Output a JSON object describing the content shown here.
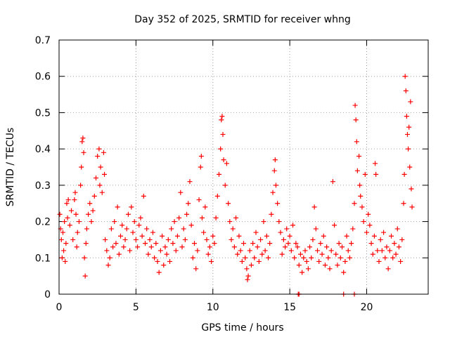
{
  "chart_data": {
    "type": "scatter",
    "title": "Day 352 of 2025, SRMTID for receiver whng",
    "xlabel": "GPS time / hours",
    "ylabel": "SRMTID / TECUs",
    "xlim": [
      0,
      24
    ],
    "ylim": [
      0,
      0.7
    ],
    "x_ticks": [
      0,
      5,
      10,
      15,
      20
    ],
    "x_tick_labels": [
      "0",
      "5",
      "10",
      "15",
      "20"
    ],
    "y_ticks": [
      0,
      0.1,
      0.2,
      0.3,
      0.4,
      0.5,
      0.6,
      0.7
    ],
    "y_tick_labels": [
      "0",
      "0.1",
      "0.2",
      "0.3",
      "0.4",
      "0.5",
      "0.6",
      "0.7"
    ],
    "grid": true,
    "marker": "+",
    "color": "#ff0000",
    "series": [
      {
        "name": "SRMTID",
        "points": [
          [
            0.05,
            0.22
          ],
          [
            0.1,
            0.18
          ],
          [
            0.15,
            0.15
          ],
          [
            0.2,
            0.1
          ],
          [
            0.25,
            0.17
          ],
          [
            0.3,
            0.12
          ],
          [
            0.35,
            0.2
          ],
          [
            0.4,
            0.09
          ],
          [
            0.45,
            0.14
          ],
          [
            0.5,
            0.25
          ],
          [
            0.55,
            0.21
          ],
          [
            0.6,
            0.26
          ],
          [
            0.7,
            0.19
          ],
          [
            0.8,
            0.23
          ],
          [
            0.9,
            0.15
          ],
          [
            1.0,
            0.26
          ],
          [
            1.05,
            0.28
          ],
          [
            1.1,
            0.22
          ],
          [
            1.15,
            0.13
          ],
          [
            1.2,
            0.17
          ],
          [
            1.3,
            0.2
          ],
          [
            1.4,
            0.3
          ],
          [
            1.45,
            0.35
          ],
          [
            1.5,
            0.42
          ],
          [
            1.55,
            0.43
          ],
          [
            1.6,
            0.39
          ],
          [
            1.65,
            0.1
          ],
          [
            1.7,
            0.05
          ],
          [
            1.75,
            0.14
          ],
          [
            1.8,
            0.18
          ],
          [
            1.9,
            0.22
          ],
          [
            2.0,
            0.25
          ],
          [
            2.1,
            0.2
          ],
          [
            2.2,
            0.23
          ],
          [
            2.3,
            0.27
          ],
          [
            2.4,
            0.32
          ],
          [
            2.5,
            0.38
          ],
          [
            2.6,
            0.4
          ],
          [
            2.65,
            0.3
          ],
          [
            2.7,
            0.35
          ],
          [
            2.8,
            0.28
          ],
          [
            2.9,
            0.39
          ],
          [
            2.95,
            0.33
          ],
          [
            3.0,
            0.15
          ],
          [
            3.1,
            0.12
          ],
          [
            3.2,
            0.08
          ],
          [
            3.3,
            0.1
          ],
          [
            3.4,
            0.18
          ],
          [
            3.5,
            0.13
          ],
          [
            3.6,
            0.2
          ],
          [
            3.7,
            0.14
          ],
          [
            3.8,
            0.24
          ],
          [
            3.9,
            0.11
          ],
          [
            4.0,
            0.16
          ],
          [
            4.1,
            0.19
          ],
          [
            4.2,
            0.13
          ],
          [
            4.3,
            0.15
          ],
          [
            4.4,
            0.18
          ],
          [
            4.5,
            0.22
          ],
          [
            4.6,
            0.12
          ],
          [
            4.7,
            0.24
          ],
          [
            4.8,
            0.17
          ],
          [
            4.9,
            0.2
          ],
          [
            5.0,
            0.15
          ],
          [
            5.1,
            0.13
          ],
          [
            5.2,
            0.19
          ],
          [
            5.3,
            0.21
          ],
          [
            5.4,
            0.16
          ],
          [
            5.5,
            0.27
          ],
          [
            5.6,
            0.14
          ],
          [
            5.7,
            0.18
          ],
          [
            5.8,
            0.11
          ],
          [
            5.9,
            0.15
          ],
          [
            6.0,
            0.13
          ],
          [
            6.1,
            0.17
          ],
          [
            6.2,
            0.1
          ],
          [
            6.3,
            0.14
          ],
          [
            6.4,
            0.09
          ],
          [
            6.5,
            0.06
          ],
          [
            6.6,
            0.12
          ],
          [
            6.7,
            0.16
          ],
          [
            6.8,
            0.08
          ],
          [
            6.9,
            0.13
          ],
          [
            7.0,
            0.11
          ],
          [
            7.1,
            0.15
          ],
          [
            7.2,
            0.09
          ],
          [
            7.3,
            0.18
          ],
          [
            7.4,
            0.14
          ],
          [
            7.5,
            0.2
          ],
          [
            7.6,
            0.12
          ],
          [
            7.7,
            0.16
          ],
          [
            7.8,
            0.21
          ],
          [
            7.9,
            0.28
          ],
          [
            8.0,
            0.13
          ],
          [
            8.1,
            0.18
          ],
          [
            8.2,
            0.15
          ],
          [
            8.3,
            0.22
          ],
          [
            8.4,
            0.25
          ],
          [
            8.5,
            0.31
          ],
          [
            8.6,
            0.19
          ],
          [
            8.7,
            0.1
          ],
          [
            8.8,
            0.14
          ],
          [
            8.9,
            0.07
          ],
          [
            9.0,
            0.12
          ],
          [
            9.1,
            0.26
          ],
          [
            9.2,
            0.35
          ],
          [
            9.25,
            0.38
          ],
          [
            9.3,
            0.21
          ],
          [
            9.4,
            0.17
          ],
          [
            9.5,
            0.24
          ],
          [
            9.6,
            0.15
          ],
          [
            9.7,
            0.11
          ],
          [
            9.8,
            0.13
          ],
          [
            9.9,
            0.09
          ],
          [
            10.0,
            0.16
          ],
          [
            10.1,
            0.14
          ],
          [
            10.2,
            0.21
          ],
          [
            10.3,
            0.27
          ],
          [
            10.4,
            0.33
          ],
          [
            10.5,
            0.4
          ],
          [
            10.55,
            0.48
          ],
          [
            10.6,
            0.49
          ],
          [
            10.65,
            0.44
          ],
          [
            10.7,
            0.37
          ],
          [
            10.8,
            0.3
          ],
          [
            10.9,
            0.36
          ],
          [
            11.0,
            0.25
          ],
          [
            11.1,
            0.2
          ],
          [
            11.2,
            0.15
          ],
          [
            11.3,
            0.18
          ],
          [
            11.4,
            0.13
          ],
          [
            11.5,
            0.21
          ],
          [
            11.6,
            0.11
          ],
          [
            11.7,
            0.16
          ],
          [
            11.8,
            0.12
          ],
          [
            11.9,
            0.09
          ],
          [
            12.0,
            0.14
          ],
          [
            12.1,
            0.1
          ],
          [
            12.2,
            0.07
          ],
          [
            12.25,
            0.04
          ],
          [
            12.3,
            0.05
          ],
          [
            12.4,
            0.12
          ],
          [
            12.5,
            0.08
          ],
          [
            12.6,
            0.14
          ],
          [
            12.7,
            0.1
          ],
          [
            12.8,
            0.17
          ],
          [
            12.9,
            0.13
          ],
          [
            13.0,
            0.09
          ],
          [
            13.1,
            0.15
          ],
          [
            13.2,
            0.11
          ],
          [
            13.3,
            0.2
          ],
          [
            13.4,
            0.12
          ],
          [
            13.5,
            0.16
          ],
          [
            13.6,
            0.1
          ],
          [
            13.7,
            0.14
          ],
          [
            13.8,
            0.22
          ],
          [
            13.9,
            0.28
          ],
          [
            14.0,
            0.34
          ],
          [
            14.05,
            0.37
          ],
          [
            14.1,
            0.3
          ],
          [
            14.2,
            0.25
          ],
          [
            14.3,
            0.2
          ],
          [
            14.4,
            0.17
          ],
          [
            14.5,
            0.11
          ],
          [
            14.6,
            0.15
          ],
          [
            14.7,
            0.13
          ],
          [
            14.8,
            0.18
          ],
          [
            14.9,
            0.14
          ],
          [
            15.0,
            0.16
          ],
          [
            15.1,
            0.12
          ],
          [
            15.2,
            0.19
          ],
          [
            15.3,
            0.1
          ],
          [
            15.4,
            0.14
          ],
          [
            15.5,
            0.13
          ],
          [
            15.6,
            0.08
          ],
          [
            15.7,
            0.11
          ],
          [
            15.8,
            0.06
          ],
          [
            15.9,
            0.1
          ],
          [
            16.0,
            0.12
          ],
          [
            16.1,
            0.09
          ],
          [
            16.2,
            0.07
          ],
          [
            16.3,
            0.13
          ],
          [
            16.4,
            0.1
          ],
          [
            16.5,
            0.15
          ],
          [
            16.6,
            0.24
          ],
          [
            16.7,
            0.18
          ],
          [
            16.8,
            0.12
          ],
          [
            16.9,
            0.09
          ],
          [
            17.0,
            0.14
          ],
          [
            17.1,
            0.11
          ],
          [
            17.2,
            0.16
          ],
          [
            17.3,
            0.08
          ],
          [
            17.4,
            0.13
          ],
          [
            17.5,
            0.1
          ],
          [
            17.6,
            0.07
          ],
          [
            17.7,
            0.12
          ],
          [
            17.8,
            0.31
          ],
          [
            17.9,
            0.19
          ],
          [
            18.0,
            0.11
          ],
          [
            18.1,
            0.08
          ],
          [
            18.2,
            0.14
          ],
          [
            18.3,
            0.1
          ],
          [
            18.4,
            0.13
          ],
          [
            18.5,
            0.06
          ],
          [
            18.6,
            0.09
          ],
          [
            18.7,
            0.16
          ],
          [
            18.8,
            0.12
          ],
          [
            18.9,
            0.1
          ],
          [
            19.0,
            0.14
          ],
          [
            19.1,
            0.18
          ],
          [
            19.2,
            0.25
          ],
          [
            19.25,
            0.52
          ],
          [
            19.3,
            0.48
          ],
          [
            19.35,
            0.42
          ],
          [
            19.4,
            0.34
          ],
          [
            19.5,
            0.38
          ],
          [
            19.55,
            0.3
          ],
          [
            19.6,
            0.27
          ],
          [
            19.7,
            0.24
          ],
          [
            19.8,
            0.2
          ],
          [
            19.9,
            0.33
          ],
          [
            20.0,
            0.17
          ],
          [
            20.1,
            0.22
          ],
          [
            20.2,
            0.19
          ],
          [
            20.3,
            0.14
          ],
          [
            20.4,
            0.11
          ],
          [
            20.5,
            0.16
          ],
          [
            20.55,
            0.36
          ],
          [
            20.6,
            0.33
          ],
          [
            20.7,
            0.12
          ],
          [
            20.8,
            0.09
          ],
          [
            20.9,
            0.15
          ],
          [
            21.0,
            0.12
          ],
          [
            21.1,
            0.17
          ],
          [
            21.2,
            0.1
          ],
          [
            21.3,
            0.13
          ],
          [
            21.4,
            0.07
          ],
          [
            21.5,
            0.12
          ],
          [
            21.6,
            0.16
          ],
          [
            21.7,
            0.1
          ],
          [
            21.8,
            0.14
          ],
          [
            21.9,
            0.11
          ],
          [
            22.0,
            0.18
          ],
          [
            22.1,
            0.13
          ],
          [
            22.2,
            0.09
          ],
          [
            22.3,
            0.15
          ],
          [
            22.4,
            0.25
          ],
          [
            22.45,
            0.33
          ],
          [
            22.5,
            0.6
          ],
          [
            22.55,
            0.56
          ],
          [
            22.6,
            0.49
          ],
          [
            22.65,
            0.44
          ],
          [
            22.7,
            0.4
          ],
          [
            22.75,
            0.46
          ],
          [
            22.8,
            0.35
          ],
          [
            22.85,
            0.53
          ],
          [
            22.9,
            0.29
          ],
          [
            22.95,
            0.24
          ],
          [
            15.55,
            0.0
          ],
          [
            15.6,
            0.0
          ],
          [
            18.5,
            0.0
          ],
          [
            19.2,
            0.0
          ]
        ]
      }
    ]
  }
}
